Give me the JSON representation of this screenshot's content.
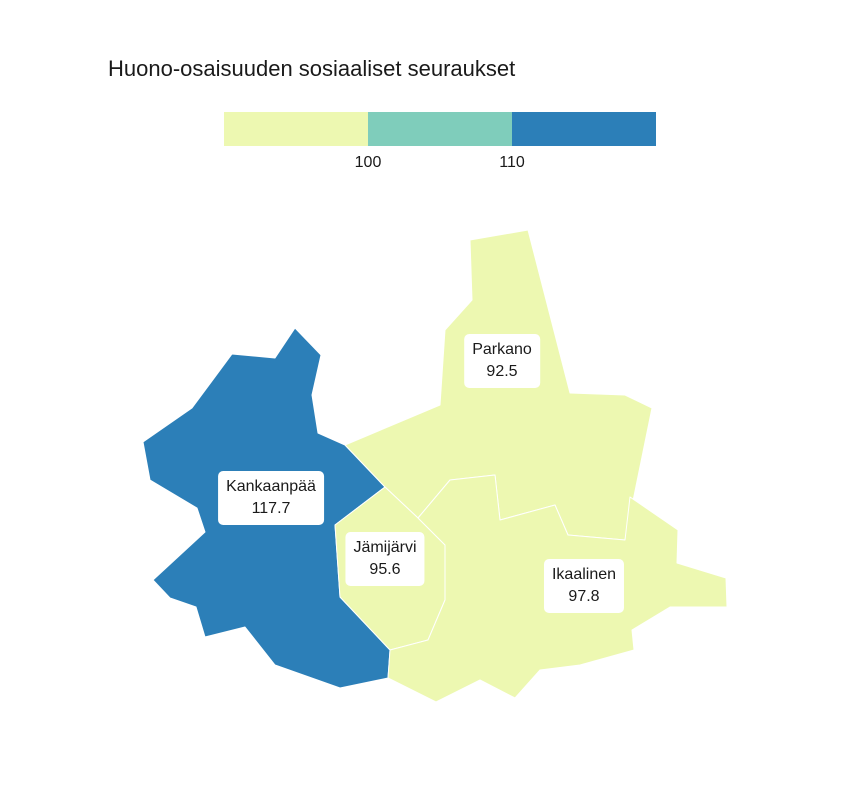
{
  "title": "Huono-osaisuuden sosiaaliset seuraukset",
  "legend": {
    "breaks": [
      "100",
      "110"
    ],
    "colors": [
      "#edf8b1",
      "#7fcdbb",
      "#2c7fb8"
    ]
  },
  "regions": [
    {
      "name": "Kankaanpää",
      "value": "117.7",
      "color": "#2c7fb8"
    },
    {
      "name": "Parkano",
      "value": "92.5",
      "color": "#edf8b1"
    },
    {
      "name": "Jämijärvi",
      "value": "95.6",
      "color": "#edf8b1"
    },
    {
      "name": "Ikaalinen",
      "value": "97.8",
      "color": "#edf8b1"
    }
  ]
}
